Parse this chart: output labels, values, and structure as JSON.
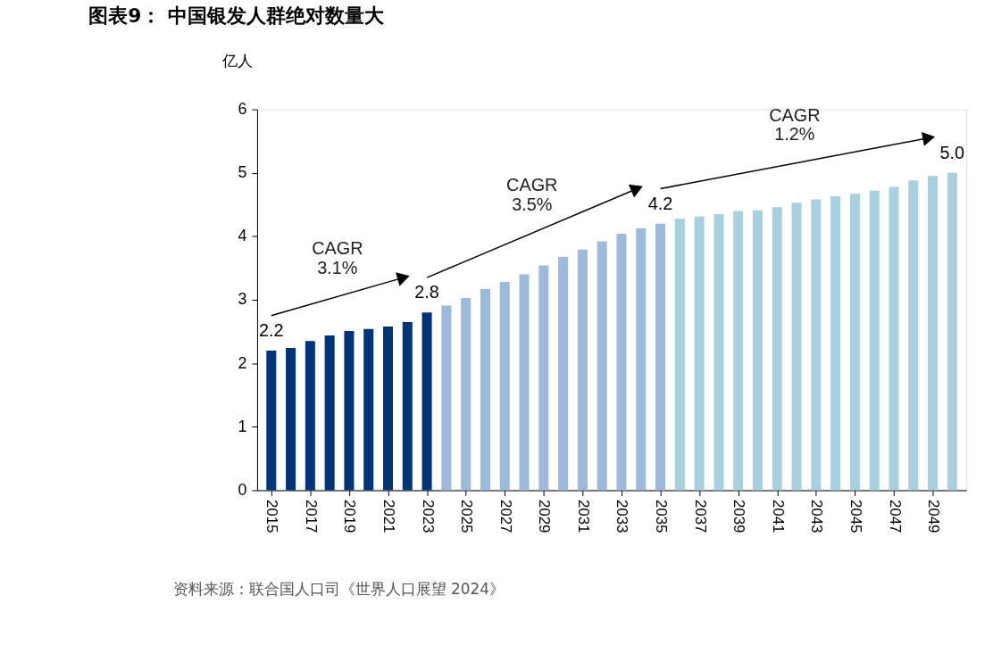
{
  "chart_data": {
    "type": "bar",
    "title": "图表9： 中国银发人群绝对数量大",
    "ylabel": "亿人",
    "categories": [
      "2015",
      null,
      "2017",
      null,
      "2019",
      null,
      "2021",
      null,
      "2023",
      null,
      "2025",
      null,
      "2027",
      null,
      "2029",
      null,
      "2031",
      null,
      "2033",
      null,
      "2035",
      null,
      "2037",
      null,
      "2039",
      null,
      "2041",
      null,
      "2043",
      null,
      "2045",
      null,
      "2047",
      null,
      "2049",
      null
    ],
    "values": [
      2.2,
      2.24,
      2.35,
      2.44,
      2.51,
      2.54,
      2.58,
      2.65,
      2.8,
      2.91,
      3.03,
      3.17,
      3.28,
      3.4,
      3.54,
      3.68,
      3.79,
      3.92,
      4.04,
      4.13,
      4.2,
      4.28,
      4.31,
      4.35,
      4.4,
      4.41,
      4.46,
      4.53,
      4.58,
      4.63,
      4.67,
      4.72,
      4.78,
      4.88,
      4.95,
      5.0
    ],
    "colors": [
      "#003478",
      "#003478",
      "#003478",
      "#003478",
      "#003478",
      "#003478",
      "#003478",
      "#003478",
      "#003478",
      "#9db9dc",
      "#9db9dc",
      "#9db9dc",
      "#9db9dc",
      "#9db9dc",
      "#9db9dc",
      "#9db9dc",
      "#9db9dc",
      "#9db9dc",
      "#9db9dc",
      "#9db9dc",
      "#9db9dc",
      "#a8d0df",
      "#a8d0df",
      "#a8d0df",
      "#a8d0df",
      "#a8d0df",
      "#a8d0df",
      "#a8d0df",
      "#a8d0df",
      "#a8d0df",
      "#a8d0df",
      "#a8d0df",
      "#a8d0df",
      "#a8d0df",
      "#a8d0df",
      "#a8d0df"
    ],
    "value_labels": [
      "2.2",
      null,
      null,
      null,
      null,
      null,
      null,
      null,
      "2.8",
      null,
      null,
      null,
      null,
      null,
      null,
      null,
      null,
      null,
      null,
      null,
      "4.2",
      null,
      null,
      null,
      null,
      null,
      null,
      null,
      null,
      null,
      null,
      null,
      null,
      null,
      null,
      "5.0"
    ],
    "ylim": [
      0,
      6
    ],
    "yticks": [
      0,
      1,
      2,
      3,
      4,
      5,
      6
    ],
    "grid": false,
    "annotations": [
      "CAGR\n3.1%",
      "CAGR\n3.5%",
      "CAGR\n1.2%",
      "资料来源：联合国人口司《世界人口展望 2024》"
    ]
  }
}
